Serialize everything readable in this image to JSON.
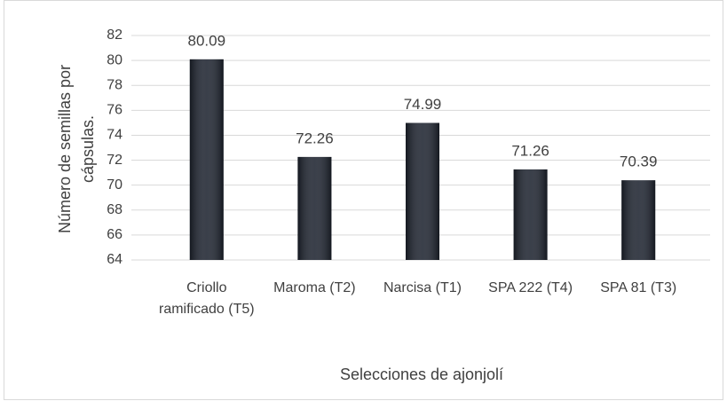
{
  "chart_data": {
    "type": "bar",
    "categories": [
      "Criollo ramificado (T5)",
      "Maroma (T2)",
      "Narcisa (T1)",
      "SPA 222 (T4)",
      "SPA 81 (T3)"
    ],
    "values": [
      80.09,
      72.26,
      74.99,
      71.26,
      70.39
    ],
    "color": "#1f2531",
    "x_label": "Selecciones de ajonjolí",
    "y_label": "Número de semillas por cápsulas.",
    "ylim": [
      64,
      82
    ],
    "yticks": [
      64,
      66,
      68,
      70,
      72,
      74,
      76,
      78,
      80,
      82
    ],
    "grid": true
  }
}
